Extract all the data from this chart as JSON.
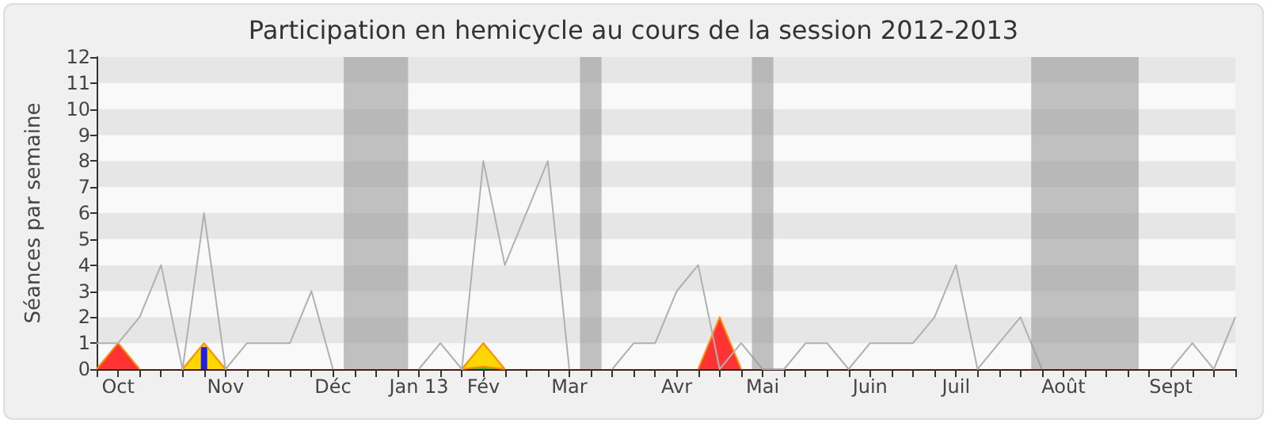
{
  "chart_data": {
    "type": "line",
    "title": "Participation en hemicycle au cours de la session 2012-2013",
    "ylabel": "Séances par semaine",
    "categories": [
      null,
      "Oct",
      null,
      null,
      null,
      null,
      "Nov",
      null,
      null,
      null,
      null,
      "Déc",
      null,
      null,
      null,
      "Jan 13",
      null,
      null,
      "Fév",
      null,
      null,
      null,
      "Mar",
      null,
      null,
      null,
      null,
      "Avr",
      null,
      null,
      null,
      "Mai",
      null,
      null,
      null,
      null,
      "Juin",
      null,
      null,
      null,
      "Juil",
      null,
      null,
      null,
      null,
      "Août",
      null,
      null,
      null,
      null,
      "Sept",
      null,
      null,
      null
    ],
    "ylim": [
      0,
      12
    ],
    "yticks": [
      0,
      1,
      2,
      3,
      4,
      5,
      6,
      7,
      8,
      9,
      10,
      11,
      12
    ],
    "marker": "none",
    "series": [
      {
        "type": "area",
        "color": "#ff3333",
        "values": [
          0,
          1,
          0,
          null,
          null,
          null,
          null,
          null,
          null,
          null,
          null,
          null,
          null,
          null,
          null,
          null,
          null,
          null,
          null,
          null,
          null,
          null,
          null,
          null,
          null,
          null,
          null,
          null,
          0,
          2,
          0,
          null,
          null,
          null,
          null,
          null,
          null,
          null,
          null,
          null,
          null,
          null,
          null,
          null,
          null,
          null,
          null,
          null,
          null,
          null,
          null,
          null,
          null,
          null
        ]
      },
      {
        "type": "area",
        "color": "#ffd700",
        "values": [
          null,
          null,
          null,
          null,
          0,
          1,
          0,
          null,
          null,
          null,
          null,
          null,
          null,
          null,
          null,
          null,
          null,
          0,
          1,
          0,
          null,
          null,
          null,
          null,
          null,
          null,
          null,
          null,
          null,
          null,
          null,
          null,
          null,
          null,
          null,
          null,
          null,
          null,
          null,
          null,
          null,
          null,
          null,
          null,
          null,
          null,
          null,
          null,
          null,
          null,
          null,
          null,
          null,
          null
        ]
      },
      {
        "type": "area",
        "color": "#33cc33",
        "values": [
          null,
          null,
          null,
          null,
          null,
          null,
          null,
          null,
          null,
          null,
          null,
          null,
          null,
          null,
          null,
          null,
          null,
          0,
          0.1,
          0,
          null,
          null,
          null,
          null,
          null,
          null,
          null,
          null,
          null,
          null,
          null,
          null,
          null,
          null,
          null,
          null,
          null,
          null,
          null,
          null,
          null,
          null,
          null,
          null,
          null,
          null,
          null,
          null,
          null,
          null,
          null,
          null,
          null,
          null
        ]
      },
      {
        "type": "bar",
        "color": "#2020e0",
        "values": [
          null,
          null,
          null,
          null,
          null,
          0.85,
          null,
          null,
          null,
          null,
          null,
          null,
          null,
          null,
          null,
          null,
          null,
          null,
          null,
          null,
          null,
          null,
          null,
          null,
          null,
          null,
          null,
          null,
          null,
          null,
          null,
          null,
          null,
          null,
          null,
          null,
          null,
          null,
          null,
          null,
          null,
          null,
          null,
          null,
          null,
          null,
          null,
          null,
          null,
          null,
          null,
          null,
          null,
          null
        ]
      },
      {
        "color": "#b0b0b0",
        "values": [
          1,
          1,
          2,
          4,
          0,
          6,
          0,
          1,
          1,
          1,
          3,
          0,
          null,
          null,
          null,
          0,
          1,
          0,
          8,
          4,
          6,
          8,
          0,
          null,
          0,
          1,
          1,
          3,
          4,
          0,
          1,
          0,
          0,
          1,
          1,
          0,
          1,
          1,
          1,
          2,
          4,
          0,
          1,
          2,
          0,
          null,
          null,
          null,
          null,
          null,
          0,
          1,
          0,
          2
        ]
      }
    ]
  }
}
